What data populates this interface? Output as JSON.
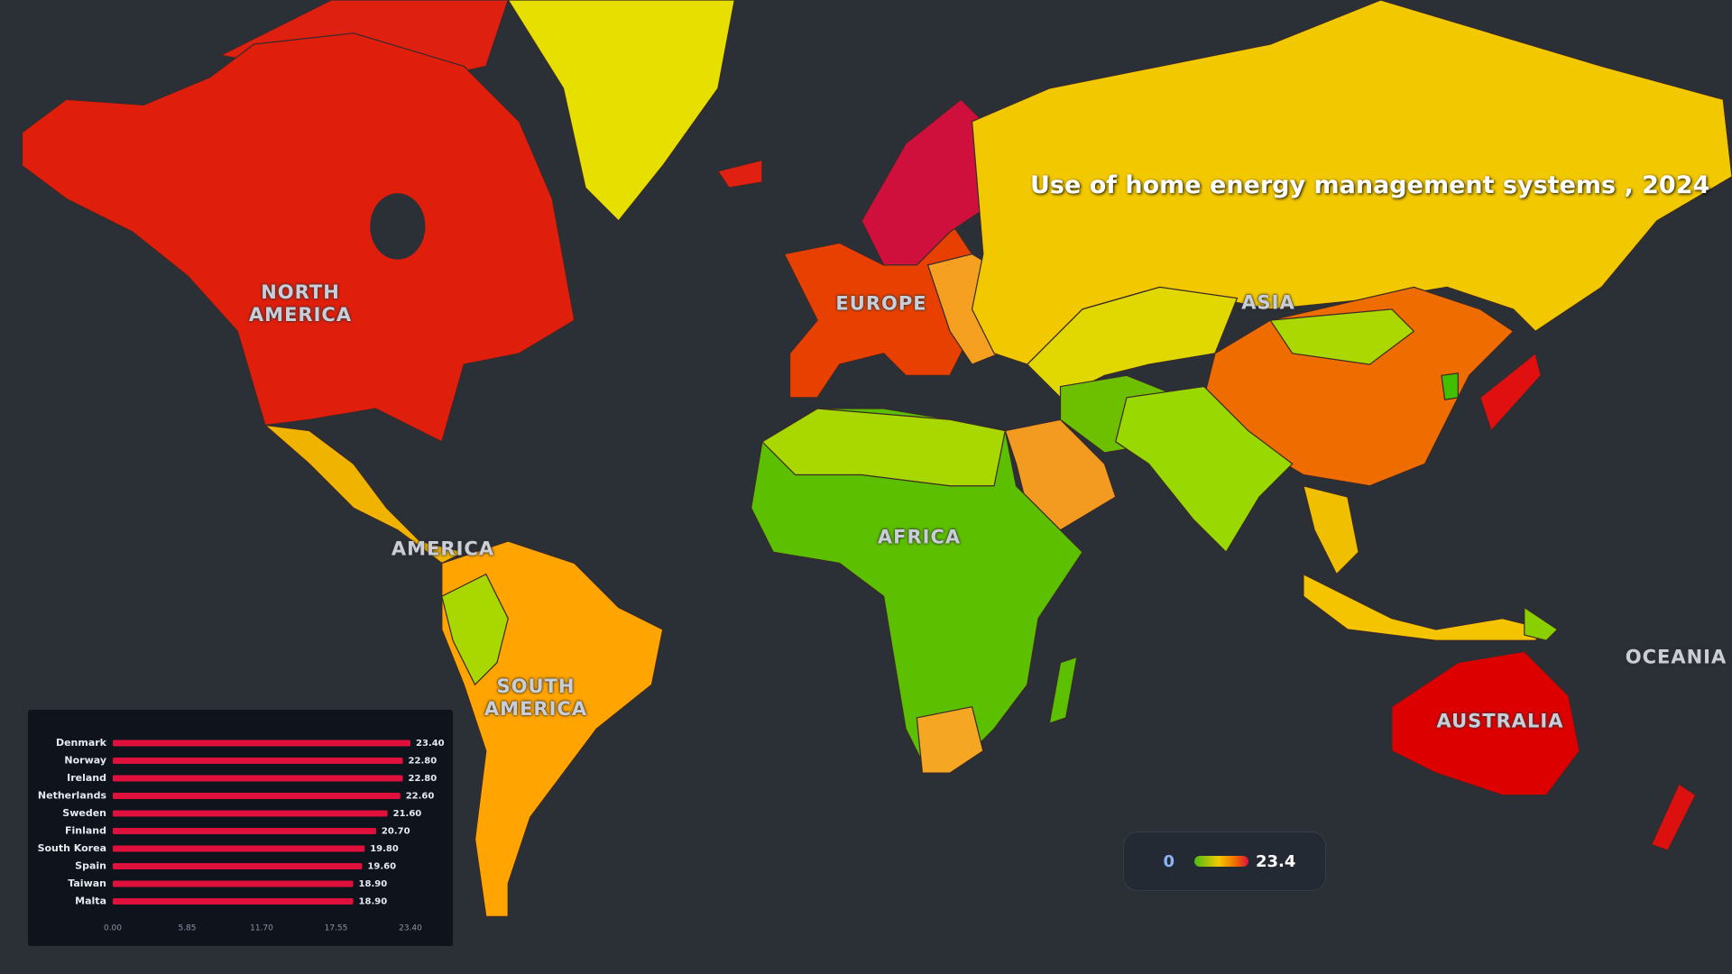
{
  "title": "Use of home energy management systems , 2024",
  "map_labels": [
    "NORTH AMERICA",
    "EUROPE",
    "ASIA",
    "AMERICA",
    "AFRICA",
    "SOUTH AMERICA",
    "OCEANIA",
    "AUSTRALIA"
  ],
  "legend": {
    "min": 0,
    "max": 23.4
  },
  "chart_data": {
    "type": "bar",
    "orientation": "horizontal",
    "categories": [
      "Denmark",
      "Norway",
      "Ireland",
      "Netherlands",
      "Sweden",
      "Finland",
      "South Korea",
      "Spain",
      "Taiwan",
      "Malta"
    ],
    "values": [
      23.4,
      22.8,
      22.8,
      22.6,
      21.6,
      20.7,
      19.8,
      19.6,
      18.9,
      18.9
    ],
    "value_labels": [
      "23.40",
      "22.80",
      "22.80",
      "22.60",
      "21.60",
      "20.70",
      "19.80",
      "19.60",
      "18.90",
      "18.90"
    ],
    "color": "#e0103c",
    "xlim": [
      0,
      23.4
    ],
    "xticks": [
      {
        "value": 0,
        "label": "0.00"
      },
      5.85,
      {
        "value": 11.7,
        "label": "11.70"
      },
      17.55,
      {
        "value": 23.4,
        "label": "23.40"
      }
    ]
  }
}
